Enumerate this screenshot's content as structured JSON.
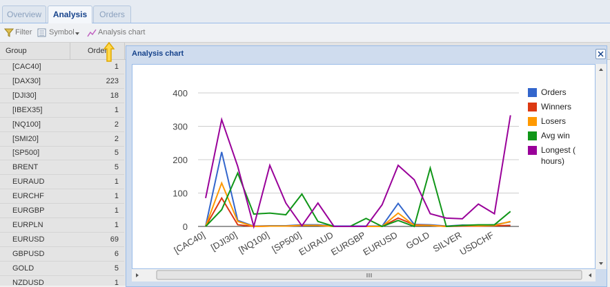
{
  "tabs": [
    "Overview",
    "Analysis",
    "Orders"
  ],
  "active_tab": 1,
  "toolbar": [
    "Filter",
    "Symbol",
    "Analysis chart"
  ],
  "grid": {
    "columns": [
      "Group",
      "Orders"
    ],
    "rows": [
      [
        "[CAC40]",
        1
      ],
      [
        "[DAX30]",
        223
      ],
      [
        "[DJI30]",
        18
      ],
      [
        "[IBEX35]",
        1
      ],
      [
        "[NQ100]",
        2
      ],
      [
        "[SMI20]",
        2
      ],
      [
        "[SP500]",
        5
      ],
      [
        "BRENT",
        5
      ],
      [
        "EURAUD",
        1
      ],
      [
        "EURCHF",
        1
      ],
      [
        "EURGBP",
        1
      ],
      [
        "EURPLN",
        1
      ],
      [
        "EURUSD",
        69
      ],
      [
        "GBPUSD",
        6
      ],
      [
        "GOLD",
        5
      ],
      [
        "NZDUSD",
        1
      ]
    ]
  },
  "dialog_title": "Analysis chart",
  "chart_data": {
    "type": "line",
    "categories": [
      "[CAC40]",
      null,
      "[DJI30]",
      null,
      "[NQ100]",
      null,
      "[SP500]",
      null,
      "EURAUD",
      null,
      "EURGBP",
      null,
      "EURUSD",
      null,
      "GOLD",
      null,
      "SILVER",
      null,
      "USDCHF",
      null
    ],
    "series": [
      {
        "name": "Orders",
        "color": "#3366cc",
        "values": [
          1,
          223,
          18,
          1,
          2,
          2,
          5,
          5,
          1,
          1,
          1,
          1,
          69,
          6,
          5,
          1,
          4,
          3,
          5,
          14
        ]
      },
      {
        "name": "Winners",
        "color": "#dc3912",
        "values": [
          0,
          85,
          5,
          0,
          1,
          1,
          3,
          3,
          0,
          0,
          0,
          0,
          25,
          5,
          3,
          0,
          1,
          1,
          2,
          3
        ]
      },
      {
        "name": "Losers",
        "color": "#ff9900",
        "values": [
          0,
          130,
          15,
          0,
          1,
          1,
          3,
          3,
          0,
          0,
          0,
          0,
          40,
          3,
          3,
          0,
          3,
          2,
          3,
          15
        ]
      },
      {
        "name": "Avg win",
        "color": "#109618",
        "values": [
          0,
          50,
          160,
          37,
          40,
          35,
          97,
          15,
          0,
          0,
          24,
          0,
          18,
          0,
          175,
          0,
          3,
          5,
          5,
          45
        ]
      },
      {
        "name": "Longest ( hours)",
        "color": "#990099",
        "values": [
          85,
          320,
          180,
          0,
          183,
          70,
          2,
          70,
          0,
          0,
          0,
          65,
          183,
          140,
          38,
          25,
          23,
          67,
          38,
          333
        ]
      }
    ],
    "ylim": [
      0,
      400
    ],
    "yticks": [
      0,
      100,
      200,
      300,
      400
    ],
    "grid": true,
    "legend": "right"
  }
}
